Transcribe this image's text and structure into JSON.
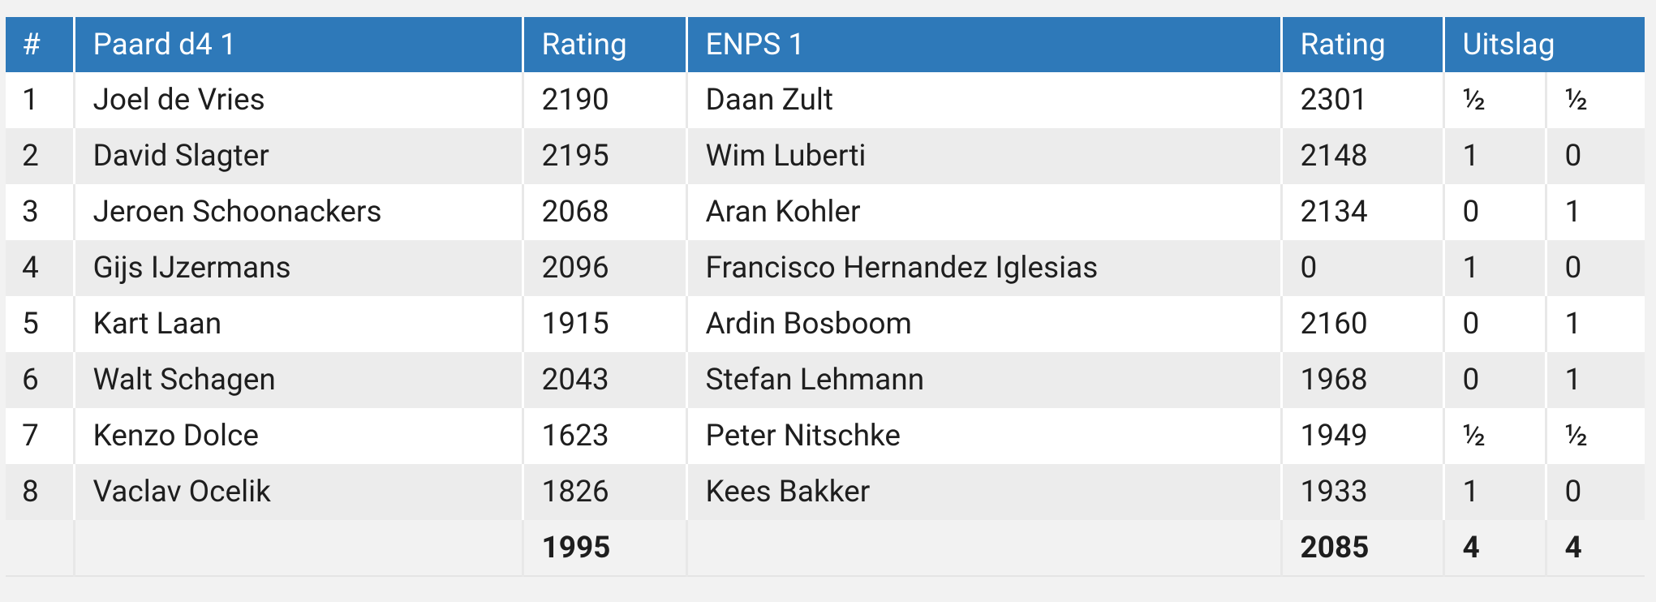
{
  "table": {
    "header": [
      "#",
      "Paard d4 1",
      "Rating",
      "ENPS 1",
      "Rating",
      "Uitslag"
    ],
    "rows": [
      [
        1,
        "Joel de Vries",
        2190,
        "Daan Zult",
        2301,
        "½",
        "½"
      ],
      [
        2,
        "David Slagter",
        2195,
        "Wim Luberti",
        2148,
        1,
        0
      ],
      [
        3,
        "Jeroen Schoonackers",
        2068,
        "Aran Kohler",
        2134,
        0,
        1
      ],
      [
        4,
        "Gijs IJzermans",
        2096,
        "Francisco Hernandez Iglesias",
        0,
        1,
        0
      ],
      [
        5,
        "Kart Laan",
        1915,
        "Ardin Bosboom",
        2160,
        0,
        1
      ],
      [
        6,
        "Walt Schagen",
        2043,
        "Stefan Lehmann",
        1968,
        0,
        1
      ],
      [
        7,
        "Kenzo Dolce",
        1623,
        "Peter Nitschke",
        1949,
        "½",
        "½"
      ],
      [
        8,
        "Vaclav Ocelik",
        1826,
        "Kees Bakker",
        1933,
        1,
        0
      ]
    ],
    "totals": {
      "rating1": 1995,
      "rating2": 2085,
      "score1": 4,
      "score2": 4
    }
  }
}
